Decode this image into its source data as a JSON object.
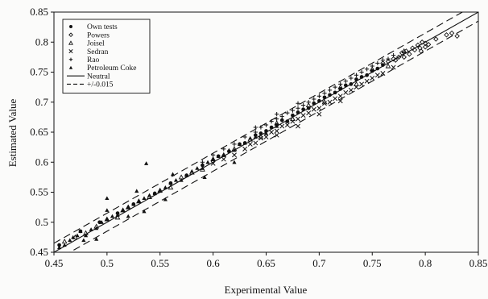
{
  "chart_data": {
    "type": "scatter",
    "title": "",
    "xlabel": "Experimental Value",
    "ylabel": "Estimated Value",
    "xlim": [
      0.45,
      0.85
    ],
    "ylim": [
      0.45,
      0.85
    ],
    "xticks": [
      "0.45",
      "0.5",
      "0.55",
      "0.6",
      "0.65",
      "0.7",
      "0.75",
      "0.8",
      "0.85"
    ],
    "yticks": [
      "0.45",
      "0.5",
      "0.55",
      "0.6",
      "0.65",
      "0.7",
      "0.75",
      "0.8",
      "0.85"
    ],
    "grid": false,
    "legend_position": "top-left",
    "series": [
      {
        "name": "Own tests",
        "marker": "circle-filled",
        "points": [
          [
            0.455,
            0.462
          ],
          [
            0.475,
            0.485
          ],
          [
            0.493,
            0.5
          ],
          [
            0.51,
            0.515
          ],
          [
            0.525,
            0.53
          ],
          [
            0.545,
            0.548
          ],
          [
            0.56,
            0.565
          ],
          [
            0.575,
            0.578
          ],
          [
            0.59,
            0.595
          ],
          [
            0.605,
            0.61
          ],
          [
            0.615,
            0.618
          ],
          [
            0.625,
            0.63
          ],
          [
            0.63,
            0.632
          ],
          [
            0.64,
            0.645
          ],
          [
            0.645,
            0.648
          ],
          [
            0.65,
            0.652
          ],
          [
            0.655,
            0.658
          ],
          [
            0.66,
            0.662
          ],
          [
            0.665,
            0.67
          ],
          [
            0.67,
            0.668
          ],
          [
            0.675,
            0.678
          ],
          [
            0.68,
            0.683
          ],
          [
            0.685,
            0.688
          ],
          [
            0.69,
            0.69
          ],
          [
            0.695,
            0.698
          ],
          [
            0.7,
            0.702
          ],
          [
            0.705,
            0.708
          ],
          [
            0.71,
            0.712
          ],
          [
            0.715,
            0.716
          ],
          [
            0.72,
            0.722
          ],
          [
            0.725,
            0.728
          ],
          [
            0.73,
            0.73
          ],
          [
            0.735,
            0.738
          ],
          [
            0.74,
            0.742
          ],
          [
            0.745,
            0.745
          ],
          [
            0.75,
            0.752
          ],
          [
            0.755,
            0.756
          ],
          [
            0.76,
            0.762
          ]
        ]
      },
      {
        "name": "Powers",
        "marker": "diamond-open",
        "points": [
          [
            0.76,
            0.765
          ],
          [
            0.765,
            0.768
          ],
          [
            0.77,
            0.772
          ],
          [
            0.775,
            0.775
          ],
          [
            0.778,
            0.782
          ],
          [
            0.782,
            0.785
          ],
          [
            0.785,
            0.78
          ],
          [
            0.788,
            0.79
          ],
          [
            0.79,
            0.787
          ],
          [
            0.793,
            0.795
          ],
          [
            0.795,
            0.79
          ],
          [
            0.797,
            0.8
          ],
          [
            0.8,
            0.792
          ],
          [
            0.8,
            0.798
          ],
          [
            0.803,
            0.796
          ],
          [
            0.81,
            0.805
          ],
          [
            0.82,
            0.812
          ],
          [
            0.825,
            0.815
          ],
          [
            0.83,
            0.81
          ],
          [
            0.796,
            0.785
          ],
          [
            0.772,
            0.77
          ],
          [
            0.78,
            0.775
          ]
        ]
      },
      {
        "name": "Joisel",
        "marker": "triangle-open",
        "points": [
          [
            0.46,
            0.468
          ],
          [
            0.47,
            0.475
          ],
          [
            0.48,
            0.482
          ],
          [
            0.49,
            0.493
          ],
          [
            0.5,
            0.505
          ],
          [
            0.51,
            0.508
          ],
          [
            0.515,
            0.52
          ],
          [
            0.52,
            0.525
          ],
          [
            0.53,
            0.535
          ],
          [
            0.54,
            0.542
          ],
          [
            0.55,
            0.553
          ],
          [
            0.56,
            0.558
          ],
          [
            0.57,
            0.575
          ],
          [
            0.58,
            0.583
          ],
          [
            0.59,
            0.588
          ],
          [
            0.6,
            0.605
          ],
          [
            0.61,
            0.612
          ],
          [
            0.62,
            0.622
          ],
          [
            0.635,
            0.638
          ],
          [
            0.645,
            0.642
          ],
          [
            0.66,
            0.665
          ],
          [
            0.675,
            0.672
          ],
          [
            0.69,
            0.695
          ],
          [
            0.705,
            0.7
          ],
          [
            0.72,
            0.725
          ],
          [
            0.735,
            0.73
          ],
          [
            0.75,
            0.755
          ],
          [
            0.765,
            0.76
          ],
          [
            0.78,
            0.785
          ]
        ]
      },
      {
        "name": "Sedran",
        "marker": "x",
        "points": [
          [
            0.6,
            0.598
          ],
          [
            0.61,
            0.605
          ],
          [
            0.62,
            0.612
          ],
          [
            0.63,
            0.622
          ],
          [
            0.635,
            0.63
          ],
          [
            0.64,
            0.632
          ],
          [
            0.645,
            0.64
          ],
          [
            0.65,
            0.642
          ],
          [
            0.655,
            0.65
          ],
          [
            0.66,
            0.652
          ],
          [
            0.665,
            0.66
          ],
          [
            0.67,
            0.662
          ],
          [
            0.675,
            0.668
          ],
          [
            0.68,
            0.672
          ],
          [
            0.685,
            0.678
          ],
          [
            0.69,
            0.682
          ],
          [
            0.695,
            0.688
          ],
          [
            0.7,
            0.69
          ],
          [
            0.705,
            0.698
          ],
          [
            0.71,
            0.7
          ],
          [
            0.715,
            0.706
          ],
          [
            0.72,
            0.71
          ],
          [
            0.725,
            0.716
          ],
          [
            0.73,
            0.72
          ],
          [
            0.735,
            0.725
          ],
          [
            0.74,
            0.73
          ],
          [
            0.745,
            0.735
          ],
          [
            0.75,
            0.74
          ],
          [
            0.755,
            0.745
          ],
          [
            0.76,
            0.748
          ],
          [
            0.77,
            0.758
          ],
          [
            0.7,
            0.68
          ],
          [
            0.72,
            0.702
          ],
          [
            0.68,
            0.66
          ],
          [
            0.66,
            0.645
          ]
        ]
      },
      {
        "name": "Rao",
        "marker": "plus",
        "points": [
          [
            0.59,
            0.6
          ],
          [
            0.6,
            0.612
          ],
          [
            0.61,
            0.622
          ],
          [
            0.62,
            0.63
          ],
          [
            0.63,
            0.642
          ],
          [
            0.64,
            0.65
          ],
          [
            0.645,
            0.658
          ],
          [
            0.65,
            0.662
          ],
          [
            0.655,
            0.668
          ],
          [
            0.66,
            0.672
          ],
          [
            0.665,
            0.676
          ],
          [
            0.67,
            0.682
          ],
          [
            0.675,
            0.686
          ],
          [
            0.68,
            0.69
          ],
          [
            0.685,
            0.695
          ],
          [
            0.69,
            0.7
          ],
          [
            0.695,
            0.705
          ],
          [
            0.7,
            0.71
          ],
          [
            0.705,
            0.715
          ],
          [
            0.71,
            0.72
          ],
          [
            0.715,
            0.725
          ],
          [
            0.72,
            0.73
          ],
          [
            0.725,
            0.735
          ],
          [
            0.73,
            0.74
          ],
          [
            0.735,
            0.745
          ],
          [
            0.74,
            0.75
          ],
          [
            0.745,
            0.755
          ],
          [
            0.75,
            0.76
          ],
          [
            0.755,
            0.765
          ],
          [
            0.76,
            0.77
          ],
          [
            0.765,
            0.772
          ],
          [
            0.77,
            0.778
          ],
          [
            0.64,
            0.658
          ],
          [
            0.66,
            0.68
          ],
          [
            0.68,
            0.698
          ]
        ]
      },
      {
        "name": "Petroleum Coke",
        "marker": "triangle-filled",
        "points": [
          [
            0.455,
            0.458
          ],
          [
            0.46,
            0.462
          ],
          [
            0.465,
            0.47
          ],
          [
            0.468,
            0.475
          ],
          [
            0.472,
            0.478
          ],
          [
            0.475,
            0.485
          ],
          [
            0.478,
            0.47
          ],
          [
            0.48,
            0.478
          ],
          [
            0.485,
            0.488
          ],
          [
            0.49,
            0.49
          ],
          [
            0.495,
            0.5
          ],
          [
            0.5,
            0.505
          ],
          [
            0.505,
            0.51
          ],
          [
            0.51,
            0.512
          ],
          [
            0.515,
            0.52
          ],
          [
            0.52,
            0.525
          ],
          [
            0.525,
            0.53
          ],
          [
            0.53,
            0.535
          ],
          [
            0.535,
            0.54
          ],
          [
            0.54,
            0.545
          ],
          [
            0.545,
            0.548
          ],
          [
            0.55,
            0.552
          ],
          [
            0.555,
            0.558
          ],
          [
            0.56,
            0.565
          ],
          [
            0.565,
            0.57
          ],
          [
            0.57,
            0.57
          ],
          [
            0.575,
            0.578
          ],
          [
            0.58,
            0.585
          ],
          [
            0.585,
            0.59
          ],
          [
            0.59,
            0.59
          ],
          [
            0.595,
            0.6
          ],
          [
            0.6,
            0.605
          ],
          [
            0.605,
            0.61
          ],
          [
            0.61,
            0.612
          ],
          [
            0.615,
            0.62
          ],
          [
            0.62,
            0.62
          ],
          [
            0.625,
            0.63
          ],
          [
            0.63,
            0.632
          ],
          [
            0.635,
            0.64
          ],
          [
            0.64,
            0.642
          ],
          [
            0.65,
            0.648
          ],
          [
            0.66,
            0.66
          ],
          [
            0.537,
            0.598
          ],
          [
            0.528,
            0.552
          ],
          [
            0.5,
            0.54
          ],
          [
            0.562,
            0.58
          ],
          [
            0.592,
            0.575
          ],
          [
            0.62,
            0.6
          ],
          [
            0.555,
            0.538
          ],
          [
            0.49,
            0.472
          ],
          [
            0.5,
            0.52
          ],
          [
            0.52,
            0.51
          ],
          [
            0.535,
            0.518
          ]
        ]
      }
    ],
    "reference_lines": [
      {
        "name": "Neutral",
        "style": "solid",
        "offset": 0
      },
      {
        "name": "+/-0.015",
        "style": "dashed",
        "offset": 0.015
      },
      {
        "name": "+/-0.015",
        "style": "dashed",
        "offset": -0.015
      }
    ]
  },
  "legend": {
    "items": [
      {
        "label": "Own tests",
        "marker": "circle-filled"
      },
      {
        "label": "Powers",
        "marker": "diamond-open"
      },
      {
        "label": "Joisel",
        "marker": "triangle-open"
      },
      {
        "label": "Sedran",
        "marker": "x"
      },
      {
        "label": "Rao",
        "marker": "plus"
      },
      {
        "label": "Petroleum Coke",
        "marker": "triangle-filled"
      },
      {
        "label": "Neutral",
        "marker": "line-solid"
      },
      {
        "label": "+/-0.015",
        "marker": "line-dashed"
      }
    ]
  },
  "colors": {
    "ink": "#111111",
    "background": "#fbfbfa"
  }
}
